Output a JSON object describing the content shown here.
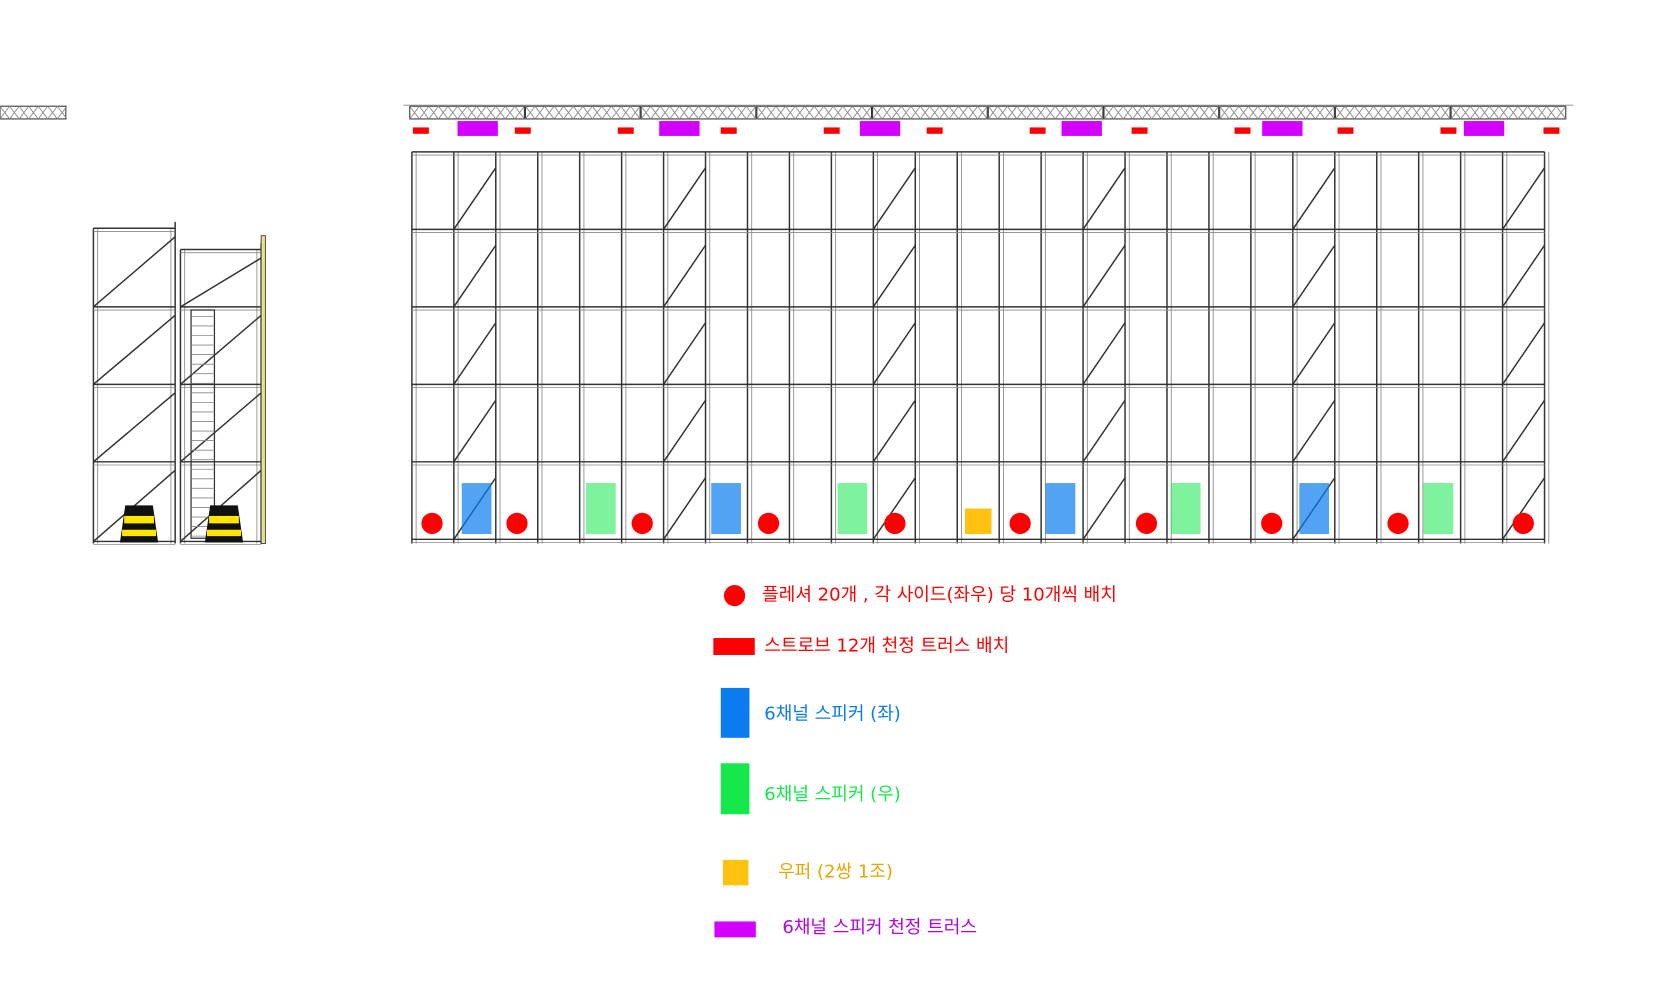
{
  "legend": {
    "items": [
      {
        "label": "플레셔 20개 , 각 사이드(좌우) 당 10개씩 배치"
      },
      {
        "label": "스트로브 12개 천정 트러스 배치"
      },
      {
        "label": "6채널 스피커 (좌)"
      },
      {
        "label": "6채널 스피커 (우)"
      },
      {
        "label": "우퍼 (2쌍 1조)"
      },
      {
        "label": "6채널 스피커 천정 트러스"
      }
    ]
  }
}
